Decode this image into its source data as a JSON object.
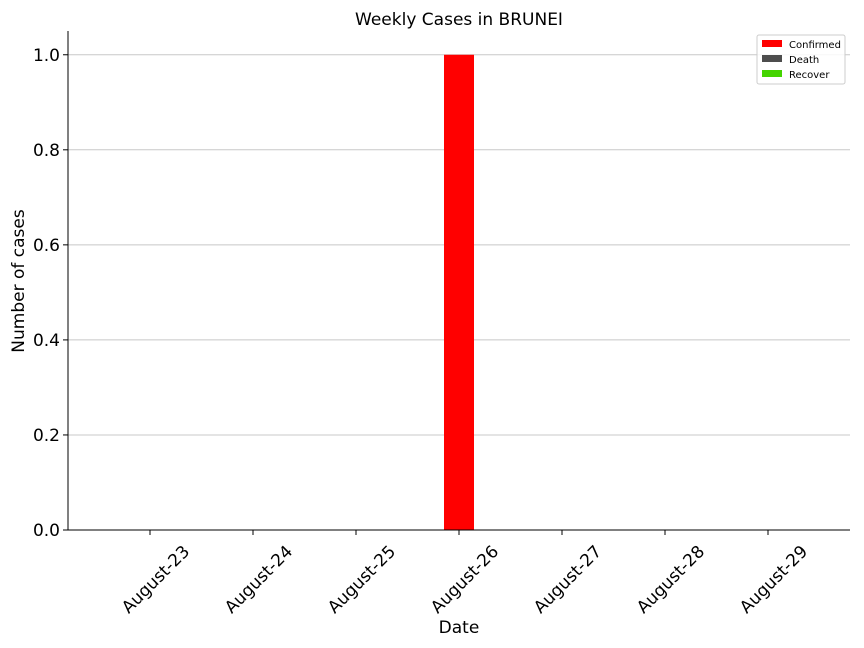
{
  "chart_data": {
    "type": "bar",
    "title": "Weekly Cases in BRUNEI",
    "xlabel": "Date",
    "ylabel": "Number of cases",
    "categories": [
      "August-23",
      "August-24",
      "August-25",
      "August-26",
      "August-27",
      "August-28",
      "August-29"
    ],
    "series": [
      {
        "name": "Confirmed",
        "color": "#ff0000",
        "values": [
          0,
          0,
          0,
          1,
          0,
          0,
          0
        ]
      },
      {
        "name": "Death",
        "color": "#4d4d4d",
        "values": [
          0,
          0,
          0,
          0,
          0,
          0,
          0
        ]
      },
      {
        "name": "Recover",
        "color": "#44d400",
        "values": [
          0,
          0,
          0,
          0,
          0,
          0,
          0
        ]
      }
    ],
    "ylim": [
      0,
      1.05
    ],
    "yticks": [
      "0.0",
      "0.2",
      "0.4",
      "0.6",
      "0.8",
      "1.0"
    ],
    "grid": "horizontal",
    "legend_position": "top-right"
  }
}
